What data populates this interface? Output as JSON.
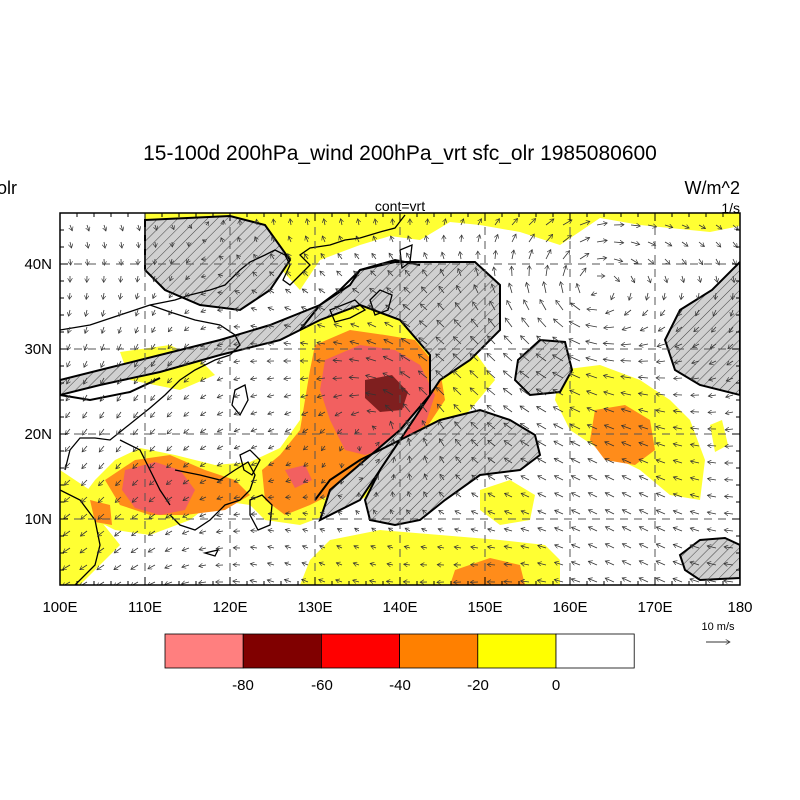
{
  "title": "15-100d 200hPa_wind 200hPa_vrt sfc_olr 1985080600",
  "left_label": "olr",
  "center_label": "cont=vrt",
  "right_unit": "W/m^2",
  "right_unit2": "1/s",
  "lon_labels": [
    "100E",
    "110E",
    "120E",
    "130E",
    "140E",
    "150E",
    "160E",
    "170E",
    "180"
  ],
  "lat_labels": [
    "40N",
    "30N",
    "20N",
    "10N"
  ],
  "ref_vector": "10 m/s",
  "colorbar": {
    "labels": [
      "-80",
      "-60",
      "-40",
      "-20",
      "0"
    ],
    "colors": [
      "#ff7f7f",
      "#800000",
      "#ff0000",
      "#ff8000",
      "#ffff00",
      "#ffffff"
    ]
  },
  "colors": {
    "yellow": "#ffff33",
    "orange": "#ff8c1a",
    "light_red": "#f26060",
    "dark_red": "#7f1f1f"
  }
}
